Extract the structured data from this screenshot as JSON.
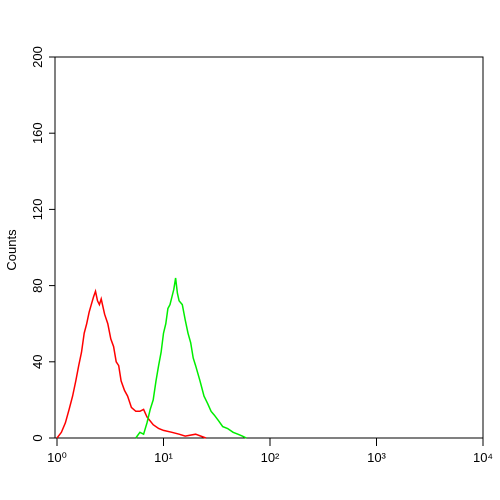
{
  "chart_data": {
    "type": "line",
    "y_label": "Counts",
    "log_x": true,
    "xlim": [
      1,
      10000
    ],
    "xticks": [
      {
        "value": 1,
        "label": "10⁰"
      },
      {
        "value": 10,
        "label": "10¹"
      },
      {
        "value": 100,
        "label": "10²"
      },
      {
        "value": 1000,
        "label": "10³"
      },
      {
        "value": 10000,
        "label": "10⁴"
      }
    ],
    "ylim": [
      0,
      200
    ],
    "yticks": [
      0,
      40,
      80,
      120,
      160,
      200
    ],
    "series": [
      {
        "color": "#ff0000",
        "x": [
          1.0,
          1.1,
          1.2,
          1.3,
          1.4,
          1.5,
          1.6,
          1.7,
          1.8,
          1.9,
          2.0,
          2.1,
          2.2,
          2.3,
          2.4,
          2.5,
          2.6,
          2.8,
          3.0,
          3.2,
          3.4,
          3.6,
          3.8,
          4.0,
          4.3,
          4.6,
          5.0,
          5.5,
          6.0,
          6.5,
          7.0,
          8.0,
          9.0,
          10,
          12,
          14,
          16,
          20,
          25
        ],
        "values": [
          0,
          3,
          8,
          15,
          22,
          30,
          38,
          45,
          55,
          60,
          66,
          70,
          74,
          77,
          72,
          70,
          73,
          65,
          60,
          52,
          48,
          40,
          38,
          30,
          25,
          22,
          16,
          14,
          14,
          15,
          11,
          7,
          5,
          4,
          3,
          2,
          1,
          2,
          0
        ]
      },
      {
        "color": "#00ee00",
        "x": [
          5.5,
          6.0,
          6.5,
          7,
          7.5,
          8,
          8.5,
          9,
          9.5,
          10,
          10.5,
          11,
          11.5,
          12,
          12.5,
          13,
          13.5,
          14,
          15,
          16,
          17,
          18,
          19,
          20,
          22,
          24,
          26,
          28,
          30,
          33,
          36,
          40,
          45,
          50,
          55,
          60
        ],
        "values": [
          0,
          3,
          2,
          8,
          15,
          20,
          30,
          38,
          45,
          55,
          60,
          68,
          70,
          74,
          78,
          84,
          76,
          72,
          70,
          62,
          55,
          50,
          42,
          38,
          30,
          22,
          18,
          14,
          12,
          9,
          6,
          5,
          3,
          2,
          1,
          0
        ]
      }
    ]
  }
}
